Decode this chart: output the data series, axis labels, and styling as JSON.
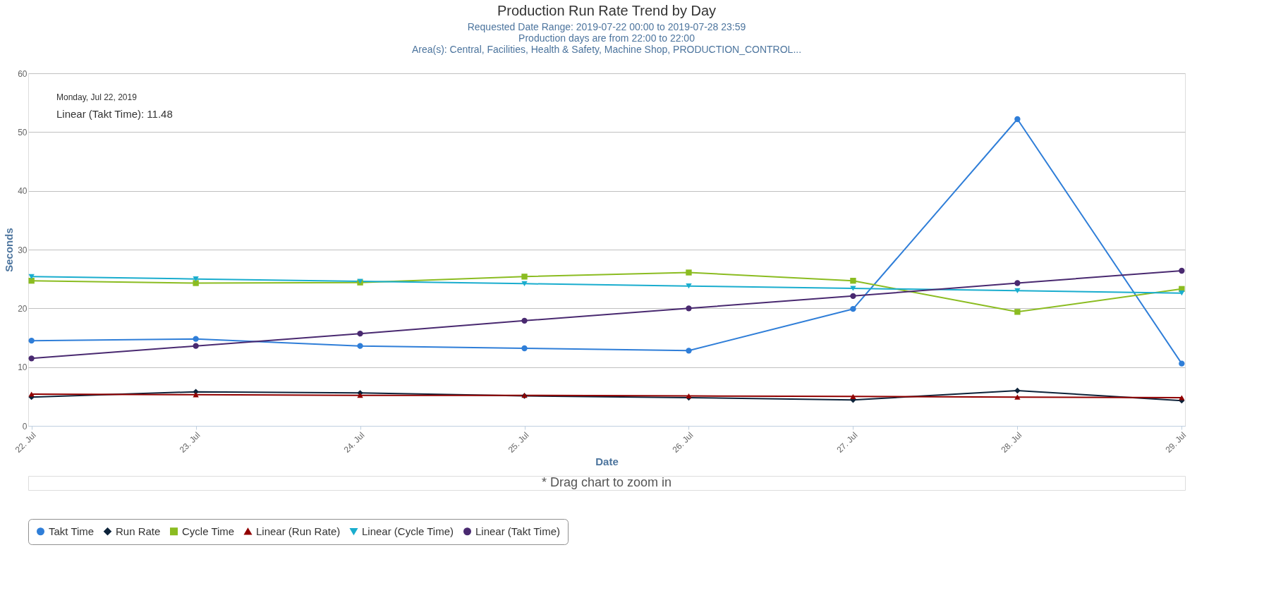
{
  "chart_data": {
    "type": "line",
    "title": "Production Run Rate Trend by Day",
    "subtitle": [
      "Requested Date Range: 2019-07-22 00:00 to 2019-07-28 23:59",
      "Production days are from 22:00 to 22:00",
      "Area(s): Central, Facilities, Health & Safety, Machine Shop, PRODUCTION_CONTROL..."
    ],
    "xlabel": "Date",
    "ylabel": "Seconds",
    "categories": [
      "22. Jul",
      "23. Jul",
      "24. Jul",
      "25. Jul",
      "26. Jul",
      "27. Jul",
      "28. Jul",
      "29. Jul"
    ],
    "ylim": [
      0,
      60
    ],
    "yticks": [
      0,
      10,
      20,
      30,
      40,
      50,
      60
    ],
    "grid": "y",
    "legend": "bottom",
    "series": [
      {
        "name": "Takt Time",
        "color": "#2f7ed8",
        "marker": "circle",
        "values": [
          14.5,
          14.8,
          13.6,
          13.2,
          12.8,
          19.9,
          52.2,
          10.6
        ]
      },
      {
        "name": "Run Rate",
        "color": "#0d233a",
        "marker": "diamond",
        "values": [
          4.9,
          5.8,
          5.6,
          5.1,
          4.8,
          4.4,
          6.0,
          4.3
        ]
      },
      {
        "name": "Cycle Time",
        "color": "#8bbc21",
        "marker": "square",
        "values": [
          24.7,
          24.3,
          24.4,
          25.4,
          26.1,
          24.7,
          19.4,
          23.3
        ]
      },
      {
        "name": "Linear (Run Rate)",
        "color": "#910000",
        "marker": "triangle",
        "values": [
          5.4,
          5.3,
          5.2,
          5.2,
          5.1,
          5.0,
          4.9,
          4.8
        ]
      },
      {
        "name": "Linear (Cycle Time)",
        "color": "#1aadce",
        "marker": "triangle-down",
        "values": [
          25.4,
          25.0,
          24.6,
          24.2,
          23.8,
          23.4,
          23.0,
          22.6
        ]
      },
      {
        "name": "Linear (Takt Time)",
        "color": "#492970",
        "marker": "circle",
        "values": [
          11.48,
          13.6,
          15.7,
          17.9,
          20.0,
          22.1,
          24.3,
          26.4
        ]
      }
    ],
    "annotations": [
      "Monday, Jul 22, 2019",
      "Linear (Takt Time): 11.48",
      "* Drag chart to zoom in"
    ]
  }
}
